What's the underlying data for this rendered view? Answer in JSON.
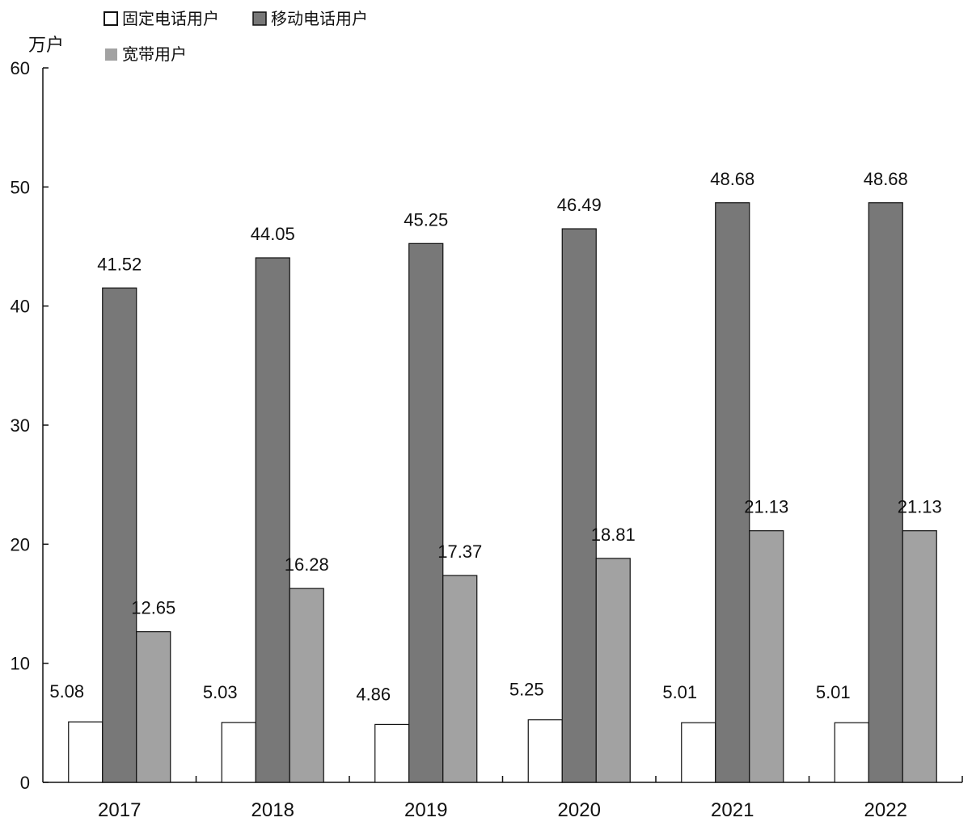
{
  "chart_data": {
    "type": "bar",
    "unit_label": "万户",
    "categories": [
      "2017",
      "2018",
      "2019",
      "2020",
      "2021",
      "2022"
    ],
    "series": [
      {
        "name": "固定电话用户",
        "values": [
          5.08,
          5.03,
          4.86,
          5.25,
          5.01,
          5.01
        ],
        "color": "#ffffff"
      },
      {
        "name": "移动电话用户",
        "values": [
          41.52,
          44.05,
          45.25,
          46.49,
          48.68,
          48.68
        ],
        "color": "#787878"
      },
      {
        "name": "宽带用户",
        "values": [
          12.65,
          16.28,
          17.37,
          18.81,
          21.13,
          21.13
        ],
        "color": "#a2a2a2"
      }
    ],
    "ylim": [
      0,
      60
    ],
    "yticks": [
      0,
      10,
      20,
      30,
      40,
      50,
      60
    ],
    "grid": false,
    "legend_position": "top-left"
  }
}
